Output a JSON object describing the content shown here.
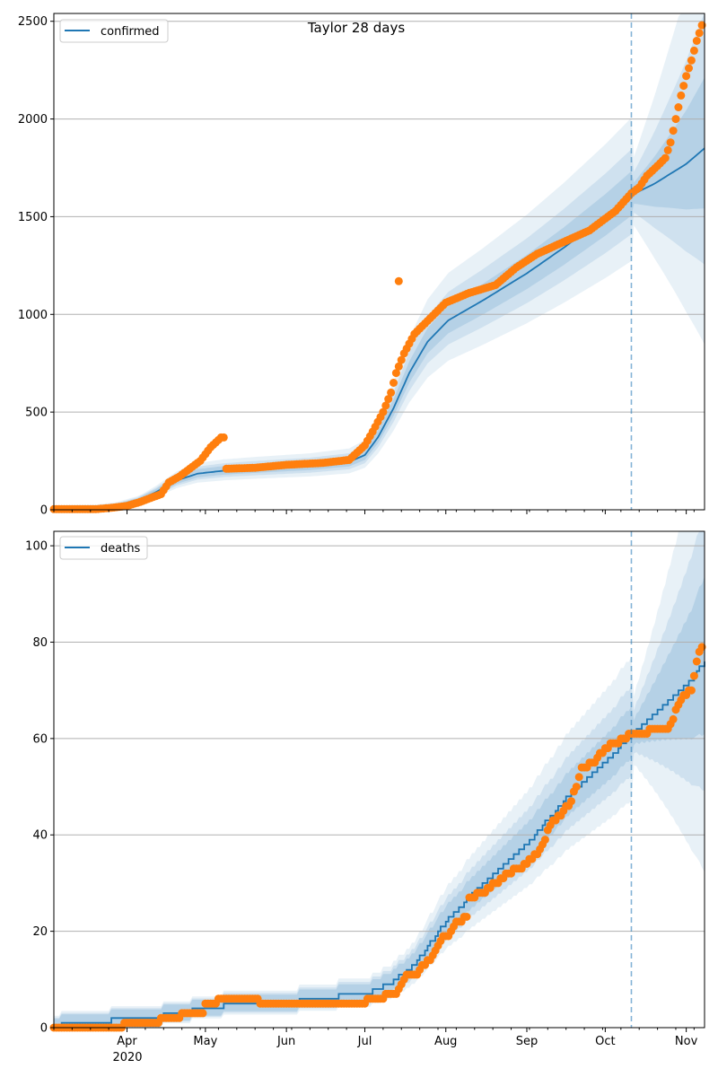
{
  "chart_data": [
    {
      "type": "line",
      "title": "Taylor 28 days",
      "xlabel": "",
      "ylabel": "",
      "grid": "horizontal",
      "legend_placement": "top-left",
      "legend": [
        "confirmed"
      ],
      "x_range": [
        "2020-03-04",
        "2020-11-08"
      ],
      "ylim": [
        0,
        2540
      ],
      "yticks": [
        0,
        500,
        1000,
        1500,
        2000,
        2500
      ],
      "ytick_labels": [
        "0",
        "500",
        "1000",
        "1500",
        "2000",
        "2500"
      ],
      "forecast_start": "2020-10-11",
      "series": [
        {
          "name": "confirmed",
          "kind": "model-median-line",
          "color": "#1f77b4",
          "points": [
            [
              "2020-03-04",
              0
            ],
            [
              "2020-03-20",
              2
            ],
            [
              "2020-03-28",
              15
            ],
            [
              "2020-04-05",
              45
            ],
            [
              "2020-04-12",
              90
            ],
            [
              "2020-04-20",
              150
            ],
            [
              "2020-04-28",
              185
            ],
            [
              "2020-05-08",
              200
            ],
            [
              "2020-05-20",
              210
            ],
            [
              "2020-06-10",
              225
            ],
            [
              "2020-06-25",
              245
            ],
            [
              "2020-07-01",
              280
            ],
            [
              "2020-07-06",
              370
            ],
            [
              "2020-07-12",
              520
            ],
            [
              "2020-07-18",
              700
            ],
            [
              "2020-07-25",
              860
            ],
            [
              "2020-08-02",
              970
            ],
            [
              "2020-08-15",
              1070
            ],
            [
              "2020-09-01",
              1210
            ],
            [
              "2020-09-15",
              1340
            ],
            [
              "2020-10-01",
              1500
            ],
            [
              "2020-10-11",
              1610
            ],
            [
              "2020-10-20",
              1670
            ],
            [
              "2020-11-01",
              1770
            ],
            [
              "2020-11-08",
              1850
            ]
          ]
        },
        {
          "name": "observed confirmed",
          "kind": "scatter",
          "color": "#ff7f0e",
          "points": [
            [
              "2020-03-04",
              3
            ],
            [
              "2020-03-20",
              3
            ],
            [
              "2020-03-26",
              10
            ],
            [
              "2020-04-01",
              20
            ],
            [
              "2020-04-06",
              40
            ],
            [
              "2020-04-10",
              60
            ],
            [
              "2020-04-14",
              80
            ],
            [
              "2020-04-17",
              140
            ],
            [
              "2020-04-21",
              170
            ],
            [
              "2020-04-25",
              210
            ],
            [
              "2020-04-29",
              250
            ],
            [
              "2020-05-03",
              320
            ],
            [
              "2020-05-07",
              370
            ],
            [
              "2020-05-09",
              210
            ],
            [
              "2020-05-20",
              215
            ],
            [
              "2020-06-01",
              230
            ],
            [
              "2020-06-15",
              240
            ],
            [
              "2020-06-25",
              255
            ],
            [
              "2020-07-01",
              330
            ],
            [
              "2020-07-04",
              400
            ],
            [
              "2020-07-08",
              500
            ],
            [
              "2020-07-11",
              600
            ],
            [
              "2020-07-13",
              700
            ],
            [
              "2020-07-16",
              800
            ],
            [
              "2020-07-14",
              1170
            ],
            [
              "2020-07-20",
              900
            ],
            [
              "2020-07-26",
              980
            ],
            [
              "2020-08-01",
              1060
            ],
            [
              "2020-08-10",
              1110
            ],
            [
              "2020-08-20",
              1150
            ],
            [
              "2020-08-28",
              1240
            ],
            [
              "2020-09-05",
              1310
            ],
            [
              "2020-09-15",
              1370
            ],
            [
              "2020-09-25",
              1430
            ],
            [
              "2020-10-05",
              1530
            ],
            [
              "2020-10-11",
              1620
            ],
            [
              "2020-10-14",
              1650
            ],
            [
              "2020-10-17",
              1710
            ],
            [
              "2020-10-21",
              1760
            ],
            [
              "2020-10-24",
              1800
            ],
            [
              "2020-10-26",
              1880
            ],
            [
              "2020-10-28",
              2000
            ],
            [
              "2020-10-30",
              2120
            ],
            [
              "2020-11-01",
              2220
            ],
            [
              "2020-11-03",
              2300
            ],
            [
              "2020-11-05",
              2400
            ],
            [
              "2020-11-07",
              2480
            ]
          ]
        }
      ],
      "bands_spread": [
        0.07,
        0.14,
        0.24
      ],
      "band_color": "#1f77b4"
    },
    {
      "type": "line",
      "title": "",
      "xlabel": "",
      "ylabel": "",
      "grid": "horizontal",
      "legend_placement": "top-left",
      "legend": [
        "deaths"
      ],
      "x_range": [
        "2020-03-04",
        "2020-11-08"
      ],
      "ylim": [
        0,
        103
      ],
      "yticks": [
        0,
        20,
        40,
        60,
        80,
        100
      ],
      "ytick_labels": [
        "0",
        "20",
        "40",
        "60",
        "80",
        "100"
      ],
      "xticks": [
        "2020-04-01",
        "2020-05-01",
        "2020-06-01",
        "2020-07-01",
        "2020-08-01",
        "2020-09-01",
        "2020-10-01",
        "2020-11-01"
      ],
      "xtick_labels": [
        "Apr",
        "May",
        "Jun",
        "Jul",
        "Aug",
        "Sep",
        "Oct",
        "Nov"
      ],
      "xtick_sublabel": "2020",
      "forecast_start": "2020-10-11",
      "series": [
        {
          "name": "deaths",
          "kind": "model-median-step",
          "color": "#1f77b4",
          "points": [
            [
              "2020-03-04",
              0
            ],
            [
              "2020-03-10",
              1
            ],
            [
              "2020-04-10",
              2
            ],
            [
              "2020-04-20",
              3
            ],
            [
              "2020-05-01",
              4
            ],
            [
              "2020-05-15",
              5
            ],
            [
              "2020-05-20",
              5
            ],
            [
              "2020-06-01",
              5
            ],
            [
              "2020-06-10",
              6
            ],
            [
              "2020-07-01",
              7
            ],
            [
              "2020-07-10",
              9
            ],
            [
              "2020-07-20",
              13
            ],
            [
              "2020-08-01",
              22
            ],
            [
              "2020-08-15",
              30
            ],
            [
              "2020-09-01",
              38
            ],
            [
              "2020-09-15",
              47
            ],
            [
              "2020-10-01",
              55
            ],
            [
              "2020-10-11",
              61
            ],
            [
              "2020-10-20",
              65
            ],
            [
              "2020-11-01",
              71
            ],
            [
              "2020-11-08",
              76
            ]
          ]
        },
        {
          "name": "observed deaths",
          "kind": "scatter",
          "color": "#ff7f0e",
          "points": [
            [
              "2020-03-04",
              0
            ],
            [
              "2020-03-30",
              0
            ],
            [
              "2020-04-01",
              1
            ],
            [
              "2020-04-12",
              1
            ],
            [
              "2020-04-15",
              2
            ],
            [
              "2020-04-20",
              2
            ],
            [
              "2020-04-23",
              3
            ],
            [
              "2020-04-30",
              3
            ],
            [
              "2020-05-01",
              5
            ],
            [
              "2020-05-05",
              5
            ],
            [
              "2020-05-07",
              6
            ],
            [
              "2020-05-20",
              6
            ],
            [
              "2020-05-22",
              5
            ],
            [
              "2020-07-01",
              5
            ],
            [
              "2020-07-03",
              6
            ],
            [
              "2020-07-08",
              6
            ],
            [
              "2020-07-10",
              7
            ],
            [
              "2020-07-13",
              7
            ],
            [
              "2020-07-15",
              9
            ],
            [
              "2020-07-17",
              11
            ],
            [
              "2020-07-21",
              11
            ],
            [
              "2020-07-23",
              13
            ],
            [
              "2020-07-26",
              14
            ],
            [
              "2020-07-28",
              16
            ],
            [
              "2020-07-31",
              19
            ],
            [
              "2020-08-02",
              19
            ],
            [
              "2020-08-04",
              21
            ],
            [
              "2020-08-06",
              22
            ],
            [
              "2020-08-09",
              23
            ],
            [
              "2020-08-10",
              27
            ],
            [
              "2020-08-15",
              28
            ],
            [
              "2020-08-20",
              30
            ],
            [
              "2020-08-25",
              32
            ],
            [
              "2020-09-01",
              34
            ],
            [
              "2020-09-05",
              36
            ],
            [
              "2020-09-08",
              39
            ],
            [
              "2020-09-10",
              42
            ],
            [
              "2020-09-14",
              44
            ],
            [
              "2020-09-18",
              47
            ],
            [
              "2020-09-20",
              50
            ],
            [
              "2020-09-22",
              54
            ],
            [
              "2020-09-27",
              55
            ],
            [
              "2020-10-01",
              58
            ],
            [
              "2020-10-05",
              59
            ],
            [
              "2020-10-08",
              60
            ],
            [
              "2020-10-11",
              61
            ],
            [
              "2020-10-25",
              62
            ],
            [
              "2020-10-27",
              64
            ],
            [
              "2020-10-29",
              67
            ],
            [
              "2020-10-31",
              69
            ],
            [
              "2020-11-03",
              70
            ],
            [
              "2020-11-04",
              73
            ],
            [
              "2020-11-05",
              76
            ],
            [
              "2020-11-07",
              79
            ]
          ]
        }
      ],
      "bands_spread": [
        0.07,
        0.14,
        0.24
      ],
      "band_color": "#1f77b4"
    }
  ]
}
